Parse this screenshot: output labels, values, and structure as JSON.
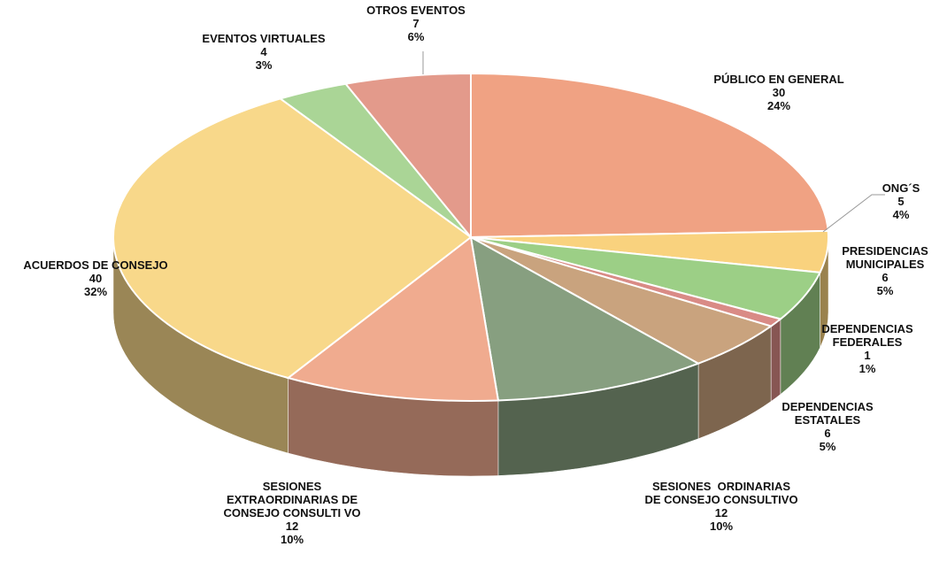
{
  "chart_data": {
    "type": "pie",
    "categories": [
      "PÚBLICO EN GENERAL",
      "ONG´S",
      "PRESIDENCIAS\nMUNICIPALES",
      "DEPENDENCIAS\nFEDERALES",
      "DEPENDENCIAS\nESTATALES",
      "SESIONES  ORDINARIAS\nDE CONSEJO CONSULTIVO",
      "SESIONES\nEXTRAORDINARIAS DE\nCONSEJO CONSULTI VO",
      "ACUERDOS DE CONSEJO",
      "EVENTOS VIRTUALES",
      "OTROS EVENTOS"
    ],
    "values": [
      30,
      5,
      6,
      1,
      6,
      12,
      12,
      40,
      4,
      7
    ],
    "percent_labels": [
      "24%",
      "4%",
      "5%",
      "1%",
      "5%",
      "10%",
      "10%",
      "32%",
      "3%",
      "6%"
    ],
    "colors": [
      "#f0a283",
      "#f9d27e",
      "#9ccf86",
      "#d98b86",
      "#c9a37e",
      "#879f80",
      "#f0ab8f",
      "#f8d88a",
      "#aad596",
      "#e39a8b"
    ]
  }
}
